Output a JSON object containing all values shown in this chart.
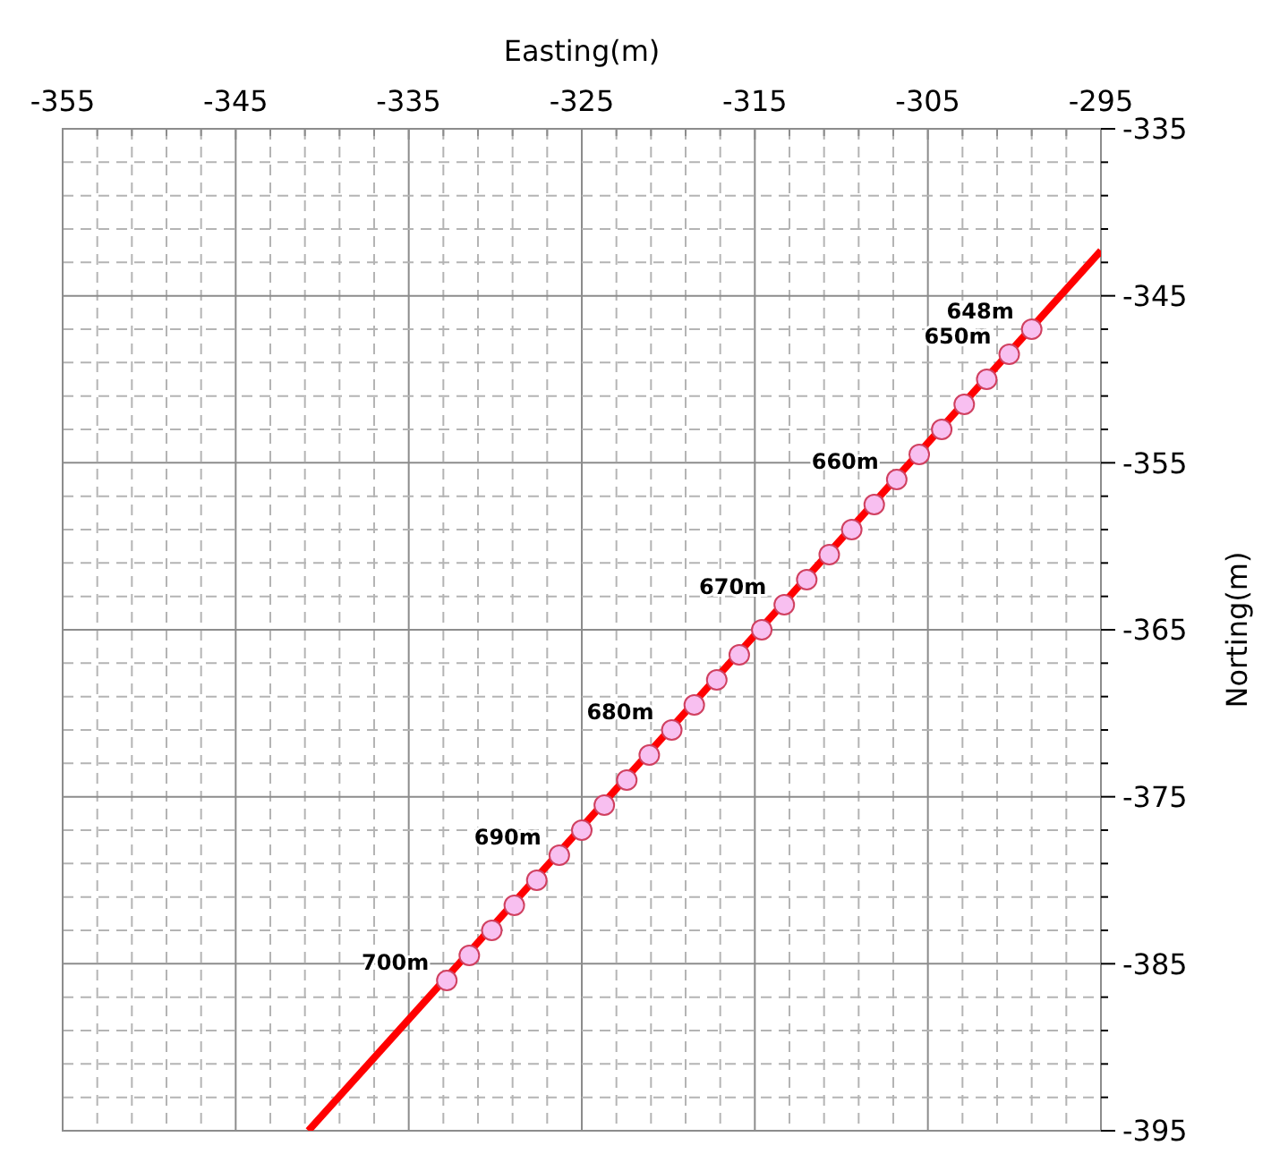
{
  "chart_data": {
    "type": "line",
    "xlabel": "Easting(m)",
    "ylabel": "Norting(m)",
    "xlim": [
      -355,
      -295
    ],
    "ylim": [
      -395,
      -335
    ],
    "xticks": [
      -355,
      {
        "value": -353,
        "label": null
      },
      {
        "value": -351,
        "label": null
      },
      {
        "value": -349,
        "label": null
      },
      {
        "value": -347,
        "label": null
      },
      -345,
      {
        "value": -343,
        "label": null
      },
      {
        "value": -341,
        "label": null
      },
      {
        "value": -339,
        "label": null
      },
      {
        "value": -337,
        "label": null
      },
      -335,
      {
        "value": -333,
        "label": null
      },
      {
        "value": -331,
        "label": null
      },
      {
        "value": -329,
        "label": null
      },
      {
        "value": -327,
        "label": null
      },
      -325,
      {
        "value": -323,
        "label": null
      },
      {
        "value": -321,
        "label": null
      },
      {
        "value": -319,
        "label": null
      },
      {
        "value": -317,
        "label": null
      },
      -315,
      {
        "value": -313,
        "label": null
      },
      {
        "value": -311,
        "label": null
      },
      {
        "value": -309,
        "label": null
      },
      {
        "value": -307,
        "label": null
      },
      -305,
      {
        "value": -303,
        "label": null
      },
      {
        "value": -301,
        "label": null
      },
      {
        "value": -299,
        "label": null
      },
      {
        "value": -297,
        "label": null
      },
      -295
    ],
    "yticks": [
      -395,
      {
        "value": -393,
        "label": null
      },
      {
        "value": -391,
        "label": null
      },
      {
        "value": -389,
        "label": null
      },
      {
        "value": -387,
        "label": null
      },
      -385,
      {
        "value": -383,
        "label": null
      },
      {
        "value": -381,
        "label": null
      },
      {
        "value": -379,
        "label": null
      },
      {
        "value": -377,
        "label": null
      },
      -375,
      {
        "value": -373,
        "label": null
      },
      {
        "value": -371,
        "label": null
      },
      {
        "value": -369,
        "label": null
      },
      {
        "value": -367,
        "label": null
      },
      -365,
      {
        "value": -363,
        "label": null
      },
      {
        "value": -361,
        "label": null
      },
      {
        "value": -359,
        "label": null
      },
      {
        "value": -357,
        "label": null
      },
      -355,
      {
        "value": -353,
        "label": null
      },
      {
        "value": -351,
        "label": null
      },
      {
        "value": -349,
        "label": null
      },
      {
        "value": -347,
        "label": null
      },
      -345,
      {
        "value": -343,
        "label": null
      },
      {
        "value": -341,
        "label": null
      },
      {
        "value": -339,
        "label": null
      },
      {
        "value": -337,
        "label": null
      },
      -335
    ],
    "grid": true,
    "series": [
      {
        "color": "#ff0000",
        "marker": "none",
        "line_style": "solid",
        "x": [
          -340.8,
          -295
        ],
        "values": [
          -395,
          -342.3
        ]
      },
      {
        "type": "scatter",
        "color": "#f8bff0",
        "marker": "circle",
        "x": [
          -299.0,
          -300.3,
          -301.6,
          -302.9,
          -304.2,
          -305.5,
          -306.8,
          -308.1,
          -309.4,
          -310.7,
          -312.0,
          -313.3,
          -314.6,
          -315.9,
          -317.2,
          -318.5,
          -319.8,
          -321.1,
          -322.4,
          -323.7,
          -325.0,
          -326.3,
          -327.6,
          -328.9,
          -330.2,
          -331.5,
          -332.8
        ],
        "values": [
          -347.0,
          -348.5,
          -350.0,
          -351.5,
          -353.0,
          -354.5,
          -356.0,
          -357.5,
          -359.0,
          -360.5,
          -362.0,
          -363.5,
          -365.0,
          -366.5,
          -368.0,
          -369.5,
          -371.0,
          -372.5,
          -374.0,
          -375.5,
          -377.0,
          -378.5,
          -380.0,
          -381.5,
          -383.0,
          -384.5,
          -386.0
        ]
      }
    ],
    "annotations": [
      {
        "text": "648m",
        "x": -299.0,
        "y": -347.0
      },
      {
        "text": "650m",
        "x": -300.3,
        "y": -348.5
      },
      {
        "text": "660m",
        "x": -306.8,
        "y": -356.0
      },
      {
        "text": "670m",
        "x": -313.3,
        "y": -363.5
      },
      {
        "text": "680m",
        "x": -319.8,
        "y": -371.0
      },
      {
        "text": "690m",
        "x": -326.3,
        "y": -378.5
      },
      {
        "text": "700m",
        "x": -332.8,
        "y": -386.0
      }
    ]
  }
}
